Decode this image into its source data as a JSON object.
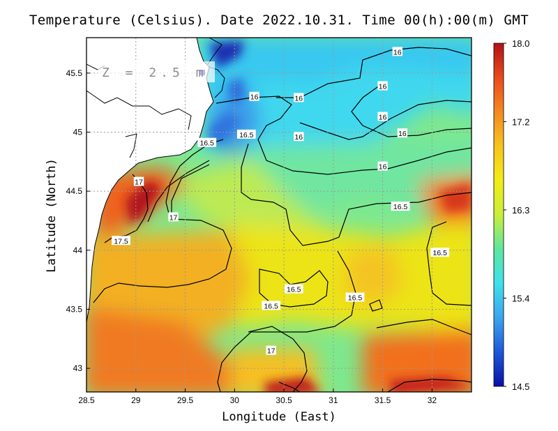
{
  "title": "Temperature (Celsius). Date 2022.10.31. Time 00(h):00(m) GMT",
  "depth_label": "Z = 2.5 m",
  "colors": {
    "scale": [
      "#0a10a6",
      "#1f57d9",
      "#3aa5ee",
      "#3fe0ea",
      "#5ee6a0",
      "#c9ee3a",
      "#f2ec18",
      "#f6c41e",
      "#f48820",
      "#ea4a1c",
      "#b21215"
    ],
    "land": "#ffffff",
    "coast": "#000000",
    "contour": "#000000",
    "grid": "#9a9a9a"
  },
  "chart_data": {
    "type": "heatmap",
    "title": "Temperature (Celsius). Date 2022.10.31. Time 00(h):00(m) GMT",
    "xlabel": "Longitude (East)",
    "ylabel": "Latitude (North)",
    "xlim": [
      28.5,
      32.4
    ],
    "ylim": [
      42.8,
      45.8
    ],
    "x_ticks": [
      "28.5",
      "29",
      "29.5",
      "30",
      "30.5",
      "31",
      "31.5",
      "32"
    ],
    "y_ticks": [
      "43",
      "43.5",
      "44",
      "44.5",
      "45",
      "45.5"
    ],
    "colorbar": {
      "min": 14.5,
      "max": 18.0,
      "ticks": [
        "18.0",
        "17.2",
        "16.3",
        "15.4",
        "14.5"
      ]
    },
    "grid": true,
    "contour_labels": [
      {
        "text": "16",
        "lon": 30.2,
        "lat": 45.3
      },
      {
        "text": "16",
        "lon": 31.65,
        "lat": 45.68
      },
      {
        "text": "16",
        "lon": 31.5,
        "lat": 45.39
      },
      {
        "text": "16",
        "lon": 31.5,
        "lat": 45.13
      },
      {
        "text": "16",
        "lon": 31.7,
        "lat": 44.99
      },
      {
        "text": "16",
        "lon": 30.65,
        "lat": 45.29
      },
      {
        "text": "16",
        "lon": 30.65,
        "lat": 44.96
      },
      {
        "text": "16",
        "lon": 31.5,
        "lat": 44.71
      },
      {
        "text": "16.5",
        "lon": 29.72,
        "lat": 44.91
      },
      {
        "text": "16.5",
        "lon": 30.12,
        "lat": 44.98
      },
      {
        "text": "16.5",
        "lon": 31.68,
        "lat": 44.37
      },
      {
        "text": "16.5",
        "lon": 32.08,
        "lat": 43.98
      },
      {
        "text": "16.5",
        "lon": 30.6,
        "lat": 43.67
      },
      {
        "text": "16.5",
        "lon": 31.22,
        "lat": 43.6
      },
      {
        "text": "16.5",
        "lon": 30.37,
        "lat": 43.53
      },
      {
        "text": "17",
        "lon": 29.03,
        "lat": 44.58
      },
      {
        "text": "17",
        "lon": 29.38,
        "lat": 44.28
      },
      {
        "text": "17",
        "lon": 30.37,
        "lat": 43.15
      },
      {
        "text": "17.5",
        "lon": 28.85,
        "lat": 44.08
      }
    ]
  }
}
